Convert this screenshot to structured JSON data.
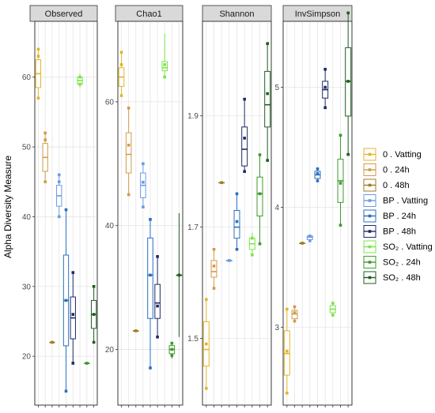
{
  "chart_data": {
    "type": "box",
    "ylabel": "Alpha Diversity Measure",
    "legend_position": "right",
    "grid": true,
    "categories": [
      "0 . Vatting",
      "0 . 24h",
      "0 . 48h",
      "BP . Vatting",
      "BP . 24h",
      "BP . 48h",
      "SO₂ . Vatting",
      "SO₂ . 24h",
      "SO₂ . 48h"
    ],
    "colors": [
      "#E3B52A",
      "#D39A4A",
      "#A07C22",
      "#6A9BE3",
      "#2A6FC0",
      "#1D2A66",
      "#7CE348",
      "#3D9A2C",
      "#1E5E1F"
    ],
    "panels": [
      {
        "name": "Observed",
        "ylim": [
          13,
          68
        ],
        "yticks": [
          20,
          30,
          40,
          50,
          60
        ],
        "boxes": [
          {
            "q1": 58.5,
            "median": 60.5,
            "q3": 62.5,
            "lo": 57,
            "hi": 64,
            "points": [
              57,
              63,
              64
            ]
          },
          {
            "q1": 46.5,
            "median": 48.5,
            "q3": 50.5,
            "lo": 45,
            "hi": 52,
            "points": [
              45,
              51,
              52
            ]
          },
          {
            "q1": 22,
            "median": 22,
            "q3": 22,
            "lo": 22,
            "hi": 22,
            "points": [
              22
            ]
          },
          {
            "q1": 41.5,
            "median": 43,
            "q3": 44.5,
            "lo": 40,
            "hi": 46,
            "points": [
              40,
              45,
              46
            ]
          },
          {
            "q1": 21.5,
            "median": 28,
            "q3": 34.5,
            "lo": 15,
            "hi": 41,
            "points": [
              15,
              28,
              41
            ]
          },
          {
            "q1": 22.5,
            "median": 25.5,
            "q3": 28.5,
            "lo": 19,
            "hi": 32,
            "points": [
              19,
              26,
              32
            ]
          },
          {
            "q1": 59,
            "median": 59.5,
            "q3": 60,
            "lo": 58.5,
            "hi": 60.5,
            "points": [
              59,
              60
            ]
          },
          {
            "q1": 19,
            "median": 19,
            "q3": 19,
            "lo": 19,
            "hi": 19,
            "points": [
              19
            ]
          },
          {
            "q1": 24,
            "median": 26,
            "q3": 28,
            "lo": 22,
            "hi": 30,
            "points": [
              22,
              26,
              30
            ]
          }
        ]
      },
      {
        "name": "Chao1",
        "ylim": [
          11,
          73
        ],
        "yticks": [
          20,
          40,
          60
        ],
        "boxes": [
          {
            "q1": 62.5,
            "median": 64,
            "q3": 65.5,
            "lo": 61,
            "hi": 68,
            "points": [
              61,
              66,
              68
            ]
          },
          {
            "q1": 48.5,
            "median": 51.5,
            "q3": 55,
            "lo": 45,
            "hi": 59,
            "points": [
              45,
              53,
              59
            ]
          },
          {
            "q1": 23,
            "median": 23,
            "q3": 23,
            "lo": 23,
            "hi": 23,
            "points": [
              23
            ]
          },
          {
            "q1": 44.5,
            "median": 46.5,
            "q3": 48.5,
            "lo": 43,
            "hi": 50,
            "points": [
              43,
              47,
              50
            ]
          },
          {
            "q1": 25,
            "median": 32,
            "q3": 38,
            "lo": 17,
            "hi": 41,
            "points": [
              17,
              32,
              41
            ]
          },
          {
            "q1": 25,
            "median": 27.5,
            "q3": 30.5,
            "lo": 22,
            "hi": 35,
            "points": [
              22,
              27,
              35
            ]
          },
          {
            "q1": 65,
            "median": 65.5,
            "q3": 66.5,
            "lo": 64,
            "hi": 71,
            "points": [
              64,
              66
            ]
          },
          {
            "q1": 19.3,
            "median": 20,
            "q3": 20.6,
            "lo": 18.5,
            "hi": 21,
            "points": [
              19,
              20,
              21
            ]
          },
          {
            "q1": 32,
            "median": 32,
            "q3": 32,
            "lo": 22,
            "hi": 42,
            "points": [
              32
            ]
          }
        ]
      },
      {
        "name": "Shannon",
        "ylim": [
          1.38,
          2.07
        ],
        "yticks": [
          1.5,
          1.7,
          1.9
        ],
        "yticklabels": [
          "1.5",
          "1.7",
          "1.9"
        ],
        "boxes": [
          {
            "q1": 1.45,
            "median": 1.48,
            "q3": 1.53,
            "lo": 1.41,
            "hi": 1.57,
            "points": [
              1.41,
              1.49,
              1.57
            ]
          },
          {
            "q1": 1.61,
            "median": 1.62,
            "q3": 1.64,
            "lo": 1.59,
            "hi": 1.66,
            "points": [
              1.59,
              1.63,
              1.66
            ]
          },
          {
            "q1": 1.78,
            "median": 1.78,
            "q3": 1.78,
            "lo": 1.78,
            "hi": 1.78,
            "points": [
              1.78
            ]
          },
          {
            "q1": 1.64,
            "median": 1.64,
            "q3": 1.64,
            "lo": 1.64,
            "hi": 1.64,
            "points": [
              1.64
            ]
          },
          {
            "q1": 1.68,
            "median": 1.7,
            "q3": 1.73,
            "lo": 1.66,
            "hi": 1.76,
            "points": [
              1.66,
              1.71,
              1.76
            ]
          },
          {
            "q1": 1.81,
            "median": 1.84,
            "q3": 1.88,
            "lo": 1.8,
            "hi": 1.93,
            "points": [
              1.8,
              1.86,
              1.93
            ]
          },
          {
            "q1": 1.66,
            "median": 1.67,
            "q3": 1.68,
            "lo": 1.65,
            "hi": 1.69,
            "points": [
              1.65,
              1.68
            ]
          },
          {
            "q1": 1.72,
            "median": 1.76,
            "q3": 1.79,
            "lo": 1.67,
            "hi": 1.83,
            "points": [
              1.67,
              1.76,
              1.83
            ]
          },
          {
            "q1": 1.88,
            "median": 1.92,
            "q3": 1.98,
            "lo": 1.82,
            "hi": 2.03,
            "points": [
              1.82,
              1.94,
              2.03
            ]
          }
        ]
      },
      {
        "name": "InvSimpson",
        "ylim": [
          2.35,
          5.55
        ],
        "yticks": [
          3,
          4,
          5
        ],
        "boxes": [
          {
            "q1": 2.6,
            "median": 2.78,
            "q3": 2.97,
            "lo": 2.45,
            "hi": 3.15,
            "points": [
              2.45,
              2.8,
              3.15
            ]
          },
          {
            "q1": 3.07,
            "median": 3.11,
            "q3": 3.14,
            "lo": 3.04,
            "hi": 3.18,
            "points": [
              3.05,
              3.12,
              3.17
            ]
          },
          {
            "q1": 3.7,
            "median": 3.7,
            "q3": 3.7,
            "lo": 3.7,
            "hi": 3.7,
            "points": [
              3.7
            ]
          },
          {
            "q1": 3.73,
            "median": 3.75,
            "q3": 3.76,
            "lo": 3.71,
            "hi": 3.77,
            "points": [
              3.72,
              3.76
            ]
          },
          {
            "q1": 4.24,
            "median": 4.27,
            "q3": 4.3,
            "lo": 4.21,
            "hi": 4.33,
            "points": [
              4.22,
              4.28,
              4.32
            ]
          },
          {
            "q1": 4.91,
            "median": 4.98,
            "q3": 5.05,
            "lo": 4.82,
            "hi": 5.15,
            "points": [
              4.83,
              5.0,
              5.15
            ]
          },
          {
            "q1": 3.12,
            "median": 3.15,
            "q3": 3.18,
            "lo": 3.09,
            "hi": 3.21,
            "points": [
              3.1,
              3.2
            ]
          },
          {
            "q1": 4.04,
            "median": 4.22,
            "q3": 4.4,
            "lo": 3.85,
            "hi": 4.6,
            "points": [
              3.85,
              4.2,
              4.6
            ]
          },
          {
            "q1": 4.76,
            "median": 5.05,
            "q3": 5.33,
            "lo": 4.44,
            "hi": 5.62,
            "points": [
              4.44,
              5.05,
              5.62
            ]
          }
        ]
      }
    ]
  }
}
